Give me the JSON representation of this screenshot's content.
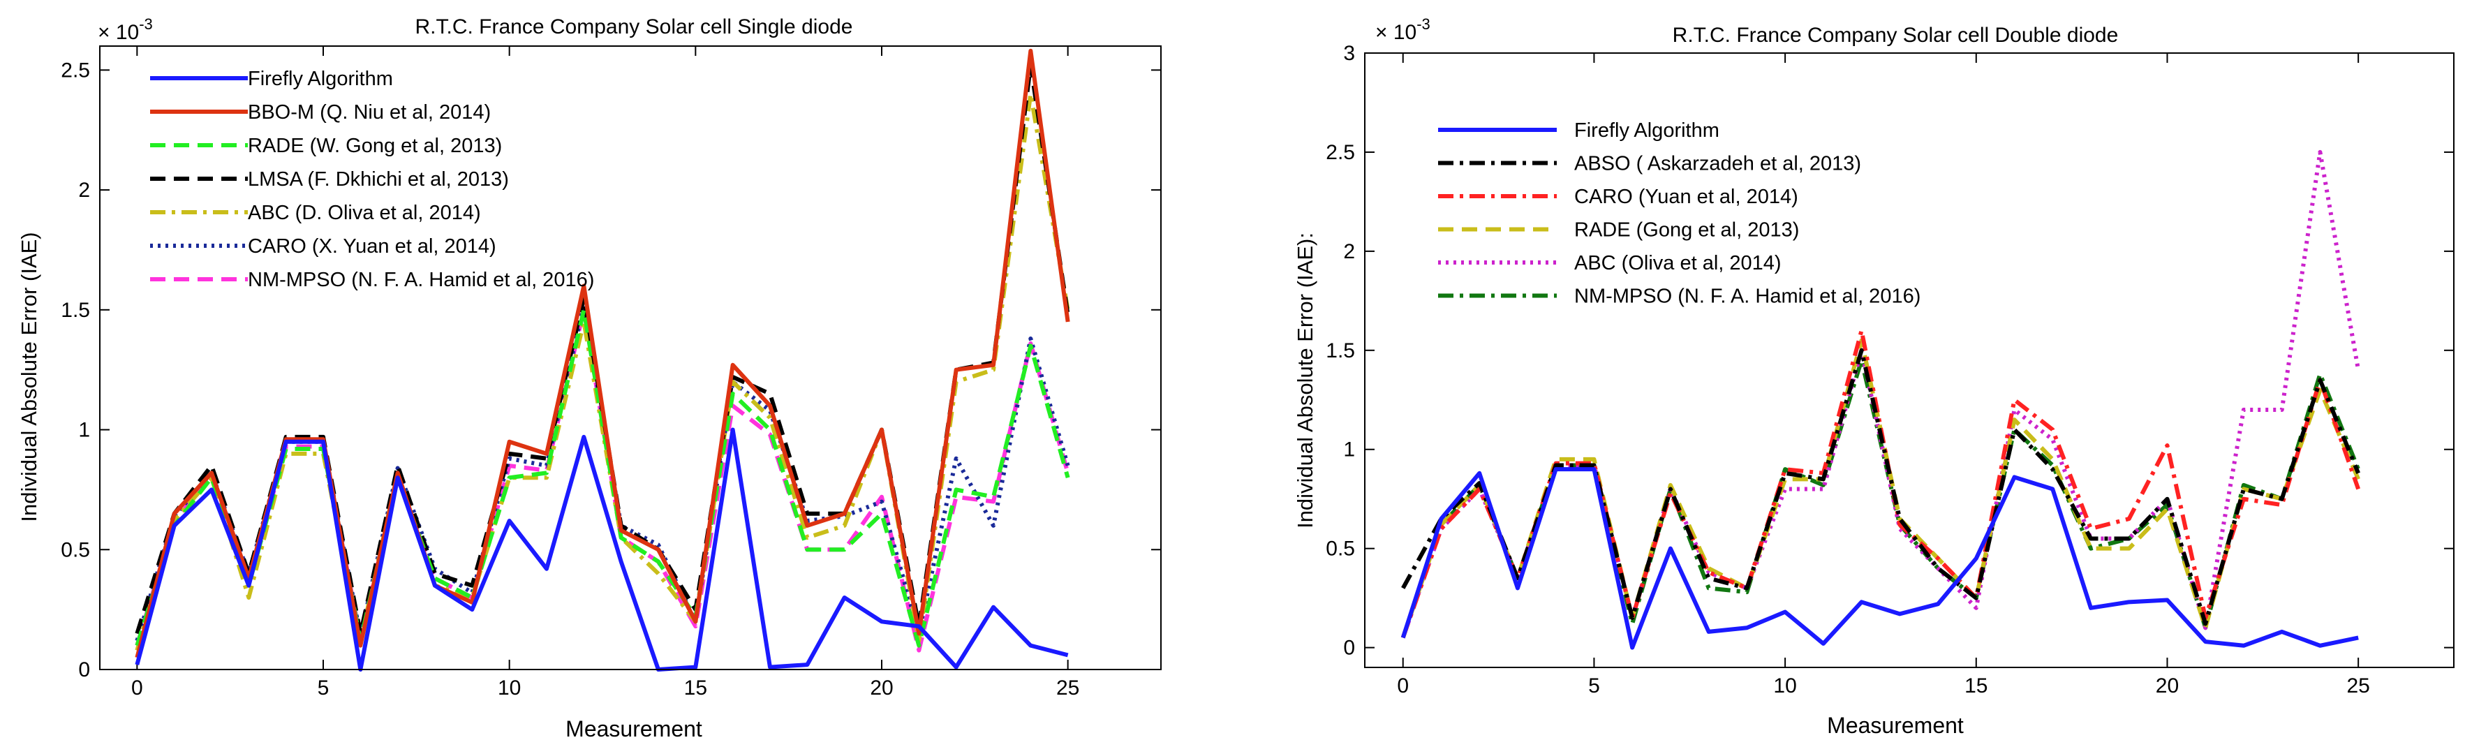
{
  "chart_data": [
    {
      "type": "line",
      "title": "R.T.C. France Company Solar cell Single diode",
      "xlabel": "Measurement",
      "ylabel": "Individual Absolute Error (IAE)",
      "exponent_label": "× 10",
      "exponent_power": "-3",
      "xlim": [
        -1,
        27.5
      ],
      "ylim": [
        0,
        2.6
      ],
      "xticks": [
        0,
        5,
        10,
        15,
        20,
        25
      ],
      "xtick_labels": [
        "0",
        "5",
        "10",
        "15",
        "20",
        "25"
      ],
      "yticks": [
        0,
        0.5,
        1,
        1.5,
        2,
        2.5
      ],
      "ytick_labels": [
        "0",
        "0.5",
        "1",
        "1.5",
        "2",
        "2.5"
      ],
      "legend_position": "top-left",
      "series": [
        {
          "name": "Firefly Algorithm",
          "color": "#1a1aff",
          "dash": "solid",
          "values": [
            0.02,
            0.6,
            0.75,
            0.35,
            0.95,
            0.95,
            0.0,
            0.8,
            0.35,
            0.25,
            0.62,
            0.42,
            0.97,
            0.45,
            0.0,
            0.01,
            1.0,
            0.01,
            0.02,
            0.3,
            0.2,
            0.18,
            0.01,
            0.26,
            0.1,
            0.06
          ]
        },
        {
          "name": "BBO-M (Q. Niu et al, 2014)",
          "color": "#dd3311",
          "dash": "solid",
          "values": [
            0.05,
            0.65,
            0.82,
            0.38,
            0.96,
            0.96,
            0.1,
            0.82,
            0.35,
            0.28,
            0.95,
            0.9,
            1.6,
            0.58,
            0.5,
            0.2,
            1.27,
            1.1,
            0.6,
            0.65,
            1.0,
            0.15,
            1.25,
            1.27,
            2.58,
            1.45
          ]
        },
        {
          "name": "RADE (W. Gong et al, 2013)",
          "color": "#22ee22",
          "dash": "dash",
          "values": [
            0.1,
            0.6,
            0.8,
            0.35,
            0.92,
            0.92,
            0.12,
            0.8,
            0.38,
            0.3,
            0.8,
            0.82,
            1.5,
            0.55,
            0.45,
            0.22,
            1.15,
            1.0,
            0.5,
            0.5,
            0.65,
            0.1,
            0.75,
            0.72,
            1.35,
            0.8
          ]
        },
        {
          "name": "LMSA (F. Dkhichi et al, 2013)",
          "color": "#000000",
          "dash": "dash",
          "values": [
            0.15,
            0.65,
            0.85,
            0.4,
            0.97,
            0.97,
            0.15,
            0.85,
            0.4,
            0.35,
            0.9,
            0.88,
            1.55,
            0.6,
            0.5,
            0.25,
            1.22,
            1.15,
            0.65,
            0.65,
            1.0,
            0.18,
            1.25,
            1.28,
            2.52,
            1.48
          ]
        },
        {
          "name": "ABC (D. Oliva et al, 2014)",
          "color": "#c9bd1a",
          "dash": "dashdot",
          "values": [
            0.08,
            0.62,
            0.8,
            0.3,
            0.9,
            0.9,
            0.12,
            0.82,
            0.35,
            0.3,
            0.8,
            0.8,
            1.45,
            0.55,
            0.4,
            0.2,
            1.2,
            1.05,
            0.55,
            0.6,
            1.0,
            0.12,
            1.2,
            1.25,
            2.4,
            1.5
          ]
        },
        {
          "name": "CARO (X. Yuan et al, 2014)",
          "color": "#1a2a99",
          "dash": "dot",
          "values": [
            0.12,
            0.64,
            0.82,
            0.4,
            0.95,
            0.95,
            0.14,
            0.84,
            0.42,
            0.32,
            0.88,
            0.85,
            1.52,
            0.6,
            0.52,
            0.2,
            1.2,
            1.08,
            0.62,
            0.64,
            0.7,
            0.15,
            0.88,
            0.6,
            1.38,
            0.85
          ]
        },
        {
          "name": "NM-MPSO (N. F. A. Hamid et al, 2016)",
          "color": "#ff33dd",
          "dash": "dash",
          "values": [
            0.1,
            0.62,
            0.8,
            0.36,
            0.93,
            0.93,
            0.13,
            0.8,
            0.38,
            0.3,
            0.85,
            0.83,
            1.5,
            0.55,
            0.45,
            0.18,
            1.1,
            0.98,
            0.5,
            0.5,
            0.72,
            0.08,
            0.72,
            0.7,
            1.36,
            0.82
          ]
        }
      ]
    },
    {
      "type": "line",
      "title": "R.T.C. France Company Solar cell Double diode",
      "xlabel": "Measurement",
      "ylabel": "Individual Absolute Error (IAE):",
      "exponent_label": "× 10",
      "exponent_power": "-3",
      "xlim": [
        -1,
        27.5
      ],
      "ylim": [
        -0.1,
        3
      ],
      "xticks": [
        0,
        5,
        10,
        15,
        20,
        25
      ],
      "xtick_labels": [
        "0",
        "5",
        "10",
        "15",
        "20",
        "25"
      ],
      "yticks": [
        0,
        0.5,
        1,
        1.5,
        2,
        2.5,
        3
      ],
      "ytick_labels": [
        "0",
        "0.5",
        "1",
        "1.5",
        "2",
        "2.5",
        "3"
      ],
      "legend_position": "top-left",
      "series": [
        {
          "name": "Firefly Algorithm",
          "color": "#1a1aff",
          "dash": "solid",
          "values": [
            0.05,
            0.65,
            0.88,
            0.3,
            0.9,
            0.9,
            0.0,
            0.5,
            0.08,
            0.1,
            0.18,
            0.02,
            0.23,
            0.17,
            0.22,
            0.45,
            0.86,
            0.8,
            0.2,
            0.23,
            0.24,
            0.03,
            0.01,
            0.08,
            0.01,
            0.05
          ]
        },
        {
          "name": "ABSO ( Askarzadeh et al, 2013)",
          "color": "#000000",
          "dash": "dashdot",
          "values": [
            0.3,
            0.65,
            0.83,
            0.35,
            0.92,
            0.92,
            0.15,
            0.8,
            0.35,
            0.3,
            0.88,
            0.85,
            1.5,
            0.65,
            0.4,
            0.25,
            1.1,
            0.9,
            0.55,
            0.55,
            0.75,
            0.12,
            0.8,
            0.75,
            1.35,
            0.88
          ]
        },
        {
          "name": "CARO (Yuan et al, 2014)",
          "color": "#ff2222",
          "dash": "dashdot",
          "values": [
            0.05,
            0.6,
            0.8,
            0.35,
            0.93,
            0.93,
            0.15,
            0.78,
            0.38,
            0.3,
            0.9,
            0.88,
            1.6,
            0.62,
            0.45,
            0.25,
            1.25,
            1.1,
            0.6,
            0.65,
            1.02,
            0.15,
            0.75,
            0.72,
            1.35,
            0.8
          ]
        },
        {
          "name": "RADE (Gong et al, 2013)",
          "color": "#c9bd1a",
          "dash": "dash",
          "values": [
            0.05,
            0.62,
            0.82,
            0.35,
            0.95,
            0.95,
            0.15,
            0.82,
            0.4,
            0.3,
            0.85,
            0.85,
            1.55,
            0.65,
            0.45,
            0.25,
            1.15,
            0.95,
            0.5,
            0.5,
            0.7,
            0.1,
            0.8,
            0.75,
            1.3,
            0.85
          ]
        },
        {
          "name": "ABC   (Oliva et al, 2014)",
          "color": "#cc22cc",
          "dash": "dot",
          "values": [
            0.05,
            0.6,
            0.8,
            0.35,
            0.92,
            0.92,
            0.15,
            0.8,
            0.38,
            0.3,
            0.8,
            0.8,
            1.5,
            0.6,
            0.4,
            0.2,
            1.2,
            1.05,
            0.55,
            0.55,
            0.75,
            0.1,
            1.2,
            1.2,
            2.5,
            1.4
          ]
        },
        {
          "name": "NM-MPSO (N. F. A. Hamid et al, 2016)",
          "color": "#117711",
          "dash": "dashdot",
          "values": [
            0.05,
            0.62,
            0.82,
            0.35,
            0.92,
            0.92,
            0.12,
            0.8,
            0.3,
            0.28,
            0.9,
            0.82,
            1.45,
            0.62,
            0.4,
            0.25,
            1.1,
            0.92,
            0.5,
            0.55,
            0.72,
            0.1,
            0.82,
            0.75,
            1.38,
            0.9
          ]
        }
      ]
    }
  ]
}
